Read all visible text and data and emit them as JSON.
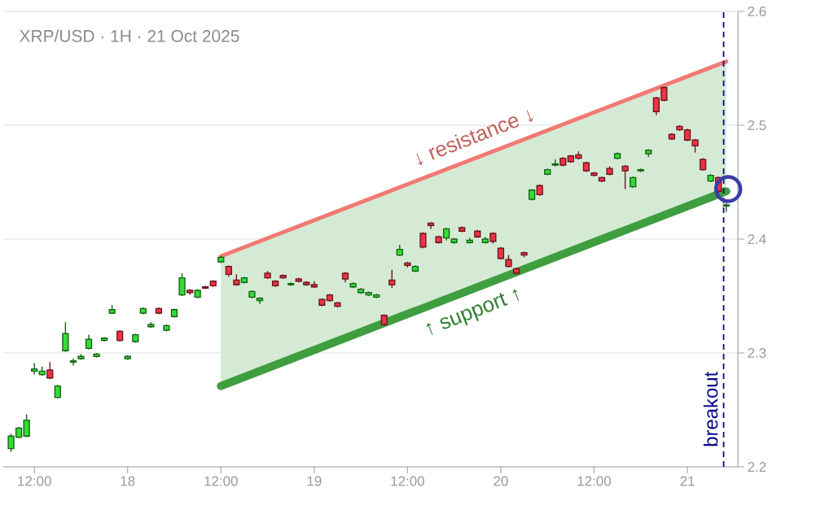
{
  "chart_data": {
    "type": "candlestick",
    "title": "XRP/USD · 1H · 21 Oct 2025",
    "xlim": [
      "2025-10-17T08:00",
      "2025-10-21T06:30"
    ],
    "xticks": [
      {
        "value": "2025-10-17T12:00",
        "label": "12:00"
      },
      {
        "value": "2025-10-18T00:00",
        "label": "18"
      },
      {
        "value": "2025-10-18T12:00",
        "label": "12:00"
      },
      {
        "value": "2025-10-19T00:00",
        "label": "19"
      },
      {
        "value": "2025-10-19T12:00",
        "label": "12:00"
      },
      {
        "value": "2025-10-20T00:00",
        "label": "20"
      },
      {
        "value": "2025-10-20T12:00",
        "label": "12:00"
      },
      {
        "value": "2025-10-21T00:00",
        "label": "21"
      }
    ],
    "ylim": [
      2.2,
      2.6
    ],
    "yticks": [
      2.2,
      2.3,
      2.4,
      2.5,
      2.6
    ],
    "grid": "y",
    "x": [
      "2025-10-17T09:00",
      "2025-10-17T10:00",
      "2025-10-17T11:00",
      "2025-10-17T12:00",
      "2025-10-17T13:00",
      "2025-10-17T14:00",
      "2025-10-17T15:00",
      "2025-10-17T16:00",
      "2025-10-17T17:00",
      "2025-10-17T18:00",
      "2025-10-17T19:00",
      "2025-10-17T20:00",
      "2025-10-17T21:00",
      "2025-10-17T22:00",
      "2025-10-17T23:00",
      "2025-10-18T00:00",
      "2025-10-18T01:00",
      "2025-10-18T02:00",
      "2025-10-18T03:00",
      "2025-10-18T04:00",
      "2025-10-18T05:00",
      "2025-10-18T06:00",
      "2025-10-18T07:00",
      "2025-10-18T08:00",
      "2025-10-18T09:00",
      "2025-10-18T10:00",
      "2025-10-18T11:00",
      "2025-10-18T12:00",
      "2025-10-18T13:00",
      "2025-10-18T14:00",
      "2025-10-18T15:00",
      "2025-10-18T16:00",
      "2025-10-18T17:00",
      "2025-10-18T18:00",
      "2025-10-18T19:00",
      "2025-10-18T20:00",
      "2025-10-18T21:00",
      "2025-10-18T22:00",
      "2025-10-18T23:00",
      "2025-10-19T00:00",
      "2025-10-19T01:00",
      "2025-10-19T02:00",
      "2025-10-19T03:00",
      "2025-10-19T04:00",
      "2025-10-19T05:00",
      "2025-10-19T06:00",
      "2025-10-19T07:00",
      "2025-10-19T08:00",
      "2025-10-19T09:00",
      "2025-10-19T10:00",
      "2025-10-19T11:00",
      "2025-10-19T12:00",
      "2025-10-19T13:00",
      "2025-10-19T14:00",
      "2025-10-19T15:00",
      "2025-10-19T16:00",
      "2025-10-19T17:00",
      "2025-10-19T18:00",
      "2025-10-19T19:00",
      "2025-10-19T20:00",
      "2025-10-19T21:00",
      "2025-10-19T22:00",
      "2025-10-19T23:00",
      "2025-10-20T00:00",
      "2025-10-20T01:00",
      "2025-10-20T02:00",
      "2025-10-20T03:00",
      "2025-10-20T04:00",
      "2025-10-20T05:00",
      "2025-10-20T06:00",
      "2025-10-20T07:00",
      "2025-10-20T08:00",
      "2025-10-20T09:00",
      "2025-10-20T10:00",
      "2025-10-20T11:00",
      "2025-10-20T12:00",
      "2025-10-20T13:00",
      "2025-10-20T14:00",
      "2025-10-20T15:00",
      "2025-10-20T16:00",
      "2025-10-20T17:00",
      "2025-10-20T18:00",
      "2025-10-20T19:00",
      "2025-10-20T20:00",
      "2025-10-20T21:00",
      "2025-10-20T22:00",
      "2025-10-20T23:00",
      "2025-10-21T00:00",
      "2025-10-21T01:00",
      "2025-10-21T02:00",
      "2025-10-21T03:00",
      "2025-10-21T04:00",
      "2025-10-21T05:00"
    ],
    "ohlc": [
      [
        2.216,
        2.229,
        2.213,
        2.227
      ],
      [
        2.226,
        2.235,
        2.225,
        2.234
      ],
      [
        2.227,
        2.246,
        2.226,
        2.241
      ],
      [
        2.284,
        2.291,
        2.281,
        2.286
      ],
      [
        2.281,
        2.288,
        2.28,
        2.284
      ],
      [
        2.285,
        2.292,
        2.277,
        2.278
      ],
      [
        2.261,
        2.272,
        2.26,
        2.271
      ],
      [
        2.302,
        2.327,
        2.301,
        2.317
      ],
      [
        2.292,
        2.295,
        2.289,
        2.293
      ],
      [
        2.295,
        2.299,
        2.294,
        2.297
      ],
      [
        2.304,
        2.316,
        2.303,
        2.312
      ],
      [
        2.297,
        2.3,
        2.296,
        2.299
      ],
      [
        2.311,
        2.314,
        2.31,
        2.313
      ],
      [
        2.335,
        2.342,
        2.334,
        2.338
      ],
      [
        2.319,
        2.32,
        2.31,
        2.311
      ],
      [
        2.295,
        2.298,
        2.294,
        2.297
      ],
      [
        2.31,
        2.317,
        2.309,
        2.316
      ],
      [
        2.335,
        2.34,
        2.334,
        2.339
      ],
      [
        2.323,
        2.327,
        2.322,
        2.325
      ],
      [
        2.339,
        2.34,
        2.334,
        2.335
      ],
      [
        2.32,
        2.325,
        2.319,
        2.324
      ],
      [
        2.332,
        2.339,
        2.331,
        2.338
      ],
      [
        2.351,
        2.37,
        2.35,
        2.366
      ],
      [
        2.355,
        2.356,
        2.351,
        2.353
      ],
      [
        2.349,
        2.356,
        2.348,
        2.355
      ],
      [
        2.358,
        2.359,
        2.356,
        2.357
      ],
      [
        2.363,
        2.364,
        2.358,
        2.359
      ],
      [
        2.38,
        2.385,
        2.379,
        2.384
      ],
      [
        2.376,
        2.377,
        2.367,
        2.369
      ],
      [
        2.364,
        2.369,
        2.359,
        2.36
      ],
      [
        2.362,
        2.367,
        2.361,
        2.366
      ],
      [
        2.349,
        2.355,
        2.348,
        2.354
      ],
      [
        2.346,
        2.349,
        2.343,
        2.348
      ],
      [
        2.37,
        2.372,
        2.365,
        2.366
      ],
      [
        2.363,
        2.364,
        2.358,
        2.359
      ],
      [
        2.368,
        2.369,
        2.365,
        2.366
      ],
      [
        2.36,
        2.362,
        2.359,
        2.361
      ],
      [
        2.365,
        2.366,
        2.362,
        2.363
      ],
      [
        2.362,
        2.363,
        2.359,
        2.36
      ],
      [
        2.36,
        2.363,
        2.357,
        2.358
      ],
      [
        2.347,
        2.348,
        2.341,
        2.342
      ],
      [
        2.351,
        2.352,
        2.345,
        2.346
      ],
      [
        2.344,
        2.345,
        2.34,
        2.341
      ],
      [
        2.37,
        2.371,
        2.362,
        2.365
      ],
      [
        2.358,
        2.362,
        2.357,
        2.361
      ],
      [
        2.353,
        2.357,
        2.352,
        2.356
      ],
      [
        2.351,
        2.354,
        2.35,
        2.353
      ],
      [
        2.349,
        2.352,
        2.348,
        2.351
      ],
      [
        2.333,
        2.334,
        2.324,
        2.325
      ],
      [
        2.364,
        2.373,
        2.357,
        2.36
      ],
      [
        2.386,
        2.395,
        2.385,
        2.391
      ],
      [
        2.379,
        2.38,
        2.375,
        2.377
      ],
      [
        2.372,
        2.377,
        2.371,
        2.376
      ],
      [
        2.405,
        2.406,
        2.392,
        2.393
      ],
      [
        2.414,
        2.415,
        2.409,
        2.412
      ],
      [
        2.402,
        2.403,
        2.396,
        2.397
      ],
      [
        2.401,
        2.41,
        2.399,
        2.409
      ],
      [
        2.397,
        2.401,
        2.396,
        2.4
      ],
      [
        2.41,
        2.411,
        2.406,
        2.407
      ],
      [
        2.397,
        2.401,
        2.396,
        2.399
      ],
      [
        2.407,
        2.408,
        2.401,
        2.402
      ],
      [
        2.397,
        2.402,
        2.396,
        2.4
      ],
      [
        2.405,
        2.406,
        2.396,
        2.398
      ],
      [
        2.392,
        2.393,
        2.382,
        2.383
      ],
      [
        2.382,
        2.386,
        2.375,
        2.376
      ],
      [
        2.374,
        2.375,
        2.369,
        2.37
      ],
      [
        2.388,
        2.389,
        2.384,
        2.386
      ],
      [
        2.435,
        2.444,
        2.434,
        2.443
      ],
      [
        2.447,
        2.448,
        2.438,
        2.439
      ],
      [
        2.457,
        2.462,
        2.456,
        2.461
      ],
      [
        2.465,
        2.47,
        2.464,
        2.466
      ],
      [
        2.471,
        2.472,
        2.464,
        2.465
      ],
      [
        2.473,
        2.474,
        2.467,
        2.468
      ],
      [
        2.474,
        2.477,
        2.47,
        2.471
      ],
      [
        2.467,
        2.468,
        2.459,
        2.46
      ],
      [
        2.458,
        2.459,
        2.455,
        2.456
      ],
      [
        2.454,
        2.455,
        2.45,
        2.451
      ],
      [
        2.462,
        2.464,
        2.456,
        2.457
      ],
      [
        2.471,
        2.476,
        2.47,
        2.475
      ],
      [
        2.464,
        2.465,
        2.444,
        2.46
      ],
      [
        2.446,
        2.455,
        2.445,
        2.454
      ],
      [
        2.46,
        2.462,
        2.459,
        2.461
      ],
      [
        2.475,
        2.479,
        2.472,
        2.478
      ],
      [
        2.524,
        2.525,
        2.509,
        2.512
      ],
      [
        2.533,
        2.534,
        2.521,
        2.522
      ],
      [
        2.492,
        2.493,
        2.487,
        2.488
      ],
      [
        2.499,
        2.5,
        2.495,
        2.496
      ],
      [
        2.496,
        2.497,
        2.486,
        2.487
      ],
      [
        2.487,
        2.488,
        2.476,
        2.482
      ],
      [
        2.47,
        2.471,
        2.46,
        2.461
      ],
      [
        2.451,
        2.457,
        2.45,
        2.456
      ],
      [
        2.454,
        2.455,
        2.44,
        2.442
      ],
      [
        2.429,
        2.433,
        2.424,
        2.43
      ]
    ],
    "colors": [
      "#33dd33",
      "#33dd33",
      "#33dd33",
      "#33dd33",
      "#33dd33",
      "#ee3344",
      "#33dd33",
      "#33dd33",
      "#33dd33",
      "#33dd33",
      "#33dd33",
      "#33dd33",
      "#33dd33",
      "#33dd33",
      "#ee3344",
      "#33dd33",
      "#33dd33",
      "#33dd33",
      "#33dd33",
      "#ee3344",
      "#33dd33",
      "#33dd33",
      "#33dd33",
      "#ee3344",
      "#33dd33",
      "#ee3344",
      "#ee3344",
      "#33dd33",
      "#ee3344",
      "#ee3344",
      "#33dd33",
      "#33dd33",
      "#33dd33",
      "#ee3344",
      "#ee3344",
      "#ee3344",
      "#33dd33",
      "#ee3344",
      "#ee3344",
      "#ee3344",
      "#ee3344",
      "#ee3344",
      "#ee3344",
      "#ee3344",
      "#33dd33",
      "#33dd33",
      "#33dd33",
      "#33dd33",
      "#ee3344",
      "#ee3344",
      "#33dd33",
      "#ee3344",
      "#33dd33",
      "#ee3344",
      "#ee3344",
      "#ee3344",
      "#33dd33",
      "#33dd33",
      "#ee3344",
      "#33dd33",
      "#ee3344",
      "#33dd33",
      "#ee3344",
      "#ee3344",
      "#ee3344",
      "#ee3344",
      "#ee3344",
      "#33dd33",
      "#ee3344",
      "#33dd33",
      "#33dd33",
      "#ee3344",
      "#ee3344",
      "#ee3344",
      "#ee3344",
      "#ee3344",
      "#ee3344",
      "#ee3344",
      "#33dd33",
      "#ee3344",
      "#33dd33",
      "#33dd33",
      "#33dd33",
      "#ee3344",
      "#ee3344",
      "#ee3344",
      "#ee3344",
      "#ee3344",
      "#ee3344",
      "#ee3344",
      "#33dd33",
      "#ee3344",
      "#33dd33"
    ],
    "series": [
      {
        "type": "line",
        "color": "#f07a72",
        "x": [
          "2025-10-18T12:00",
          "2025-10-21T05:00"
        ],
        "values": [
          2.385,
          2.556
        ]
      },
      {
        "type": "line",
        "color": "#3f9e3f",
        "x": [
          "2025-10-18T12:00",
          "2025-10-21T05:00"
        ],
        "values": [
          2.271,
          2.442
        ],
        "lower": [
          2.271,
          2.442
        ],
        "upper": [
          2.385,
          2.556
        ]
      },
      {
        "type": "scatter",
        "marker": "circle",
        "color": "#3c3ca8",
        "x": [
          "2025-10-21T05:15"
        ],
        "values": [
          2.444
        ]
      }
    ],
    "ref_lines": [
      {
        "axis": "x",
        "value": "2025-10-21T04:40",
        "label": "breakout",
        "color": "#0a0a8c",
        "line_style": "dashed"
      }
    ],
    "annotations": [
      "↓ resistance ↓",
      "↑ support ↑"
    ]
  }
}
